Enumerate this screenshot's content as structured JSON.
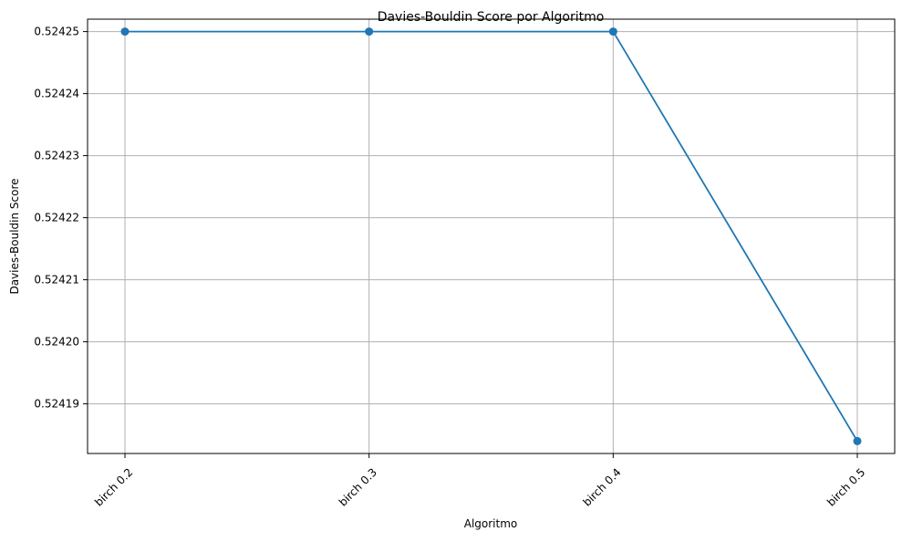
{
  "chart_data": {
    "type": "line",
    "title": "Davies-Bouldin Score por Algoritmo",
    "xlabel": "Algoritmo",
    "ylabel": "Davies-Bouldin Score",
    "categories": [
      "birch 0.2",
      "birch 0.3",
      "birch 0.4",
      "birch 0.5"
    ],
    "series": [
      {
        "values": [
          0.52425,
          0.52425,
          0.52425,
          0.524184
        ]
      }
    ],
    "yticks": [
      "0.52419",
      "0.52420",
      "0.52421",
      "0.52422",
      "0.52423",
      "0.52424",
      "0.52425"
    ],
    "ylim": [
      0.524182,
      0.524252
    ],
    "grid": true,
    "colors": {
      "line": "#1f77b4",
      "grid": "#b0b0b0",
      "axes": "#000000"
    }
  }
}
